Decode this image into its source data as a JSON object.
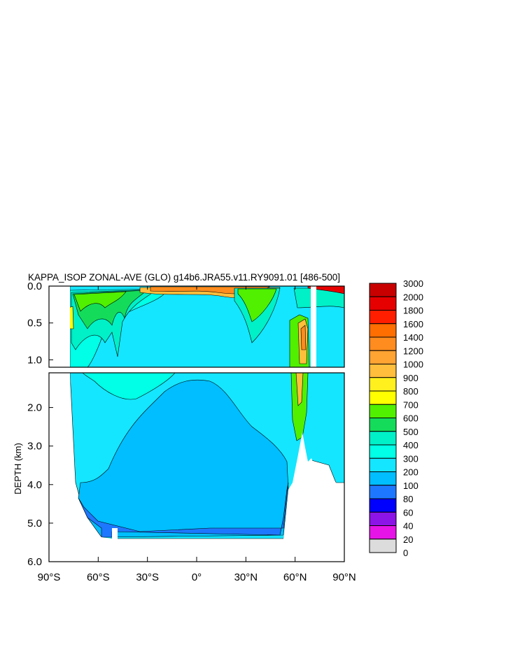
{
  "chart_data": {
    "type": "heatmap",
    "title": "KAPPA_ISOP ZONAL-AVE (GLO) g14b6.JRA55.v11.RY9091.01 [486-500]",
    "ylabel": "DEPTH (km)",
    "xlabel": "",
    "x_ticks": [
      {
        "value": -90,
        "label": "90°S"
      },
      {
        "value": -60,
        "label": "60°S"
      },
      {
        "value": -30,
        "label": "30°S"
      },
      {
        "value": 0,
        "label": "0°"
      },
      {
        "value": 30,
        "label": "30°N"
      },
      {
        "value": 60,
        "label": "60°N"
      },
      {
        "value": 90,
        "label": "90°N"
      }
    ],
    "xlim": [
      -90,
      90
    ],
    "upper_panel": {
      "ylim": [
        0.0,
        1.1
      ],
      "y_ticks": [
        {
          "value": 0.0,
          "label": "0.0"
        },
        {
          "value": 0.5,
          "label": "0.5"
        },
        {
          "value": 1.0,
          "label": "1.0"
        }
      ]
    },
    "lower_panel": {
      "ylim": [
        1.1,
        6.0
      ],
      "y_ticks": [
        {
          "value": 2.0,
          "label": "2.0"
        },
        {
          "value": 3.0,
          "label": "3.0"
        },
        {
          "value": 4.0,
          "label": "4.0"
        },
        {
          "value": 5.0,
          "label": "5.0"
        },
        {
          "value": 6.0,
          "label": "6.0"
        }
      ]
    },
    "colorbar": {
      "levels": [
        "3000",
        "2000",
        "1800",
        "1600",
        "1400",
        "1200",
        "1000",
        "900",
        "800",
        "700",
        "600",
        "500",
        "400",
        "300",
        "200",
        "100",
        "80",
        "60",
        "40",
        "20",
        "0"
      ],
      "colors": [
        "#c80000",
        "#e60000",
        "#ff1e00",
        "#ff6e00",
        "#ff8c1e",
        "#ffa332",
        "#ffbe3c",
        "#fff01e",
        "#ffff00",
        "#50f000",
        "#14dc5a",
        "#00f0c8",
        "#00ffe6",
        "#14e6ff",
        "#00beff",
        "#1e78ff",
        "#0000ff",
        "#8c14e6",
        "#e614e6",
        "#dcdcdc",
        "#787878"
      ]
    },
    "regions": {
      "upper": [
        {
          "band": "300",
          "x": [
            -76,
            90
          ],
          "depth": [
            0.0,
            1.1
          ]
        },
        {
          "band": "500",
          "x": [
            -70,
            -25
          ],
          "depth": [
            0.05,
            0.95
          ]
        },
        {
          "band": "600",
          "x": [
            -68,
            -40
          ],
          "depth": [
            0.05,
            0.75
          ]
        },
        {
          "band": "800",
          "x": [
            -62,
            -48
          ],
          "depth": [
            0.05,
            0.35
          ]
        },
        {
          "band": "1200",
          "x": [
            -35,
            45
          ],
          "depth": [
            0.0,
            0.12
          ]
        },
        {
          "band": "600",
          "x": [
            25,
            55
          ],
          "depth": [
            0.05,
            0.4
          ]
        },
        {
          "band": "700",
          "x": [
            57,
            68
          ],
          "depth": [
            0.4,
            1.1
          ]
        },
        {
          "band": "1000",
          "x": [
            60,
            67
          ],
          "depth": [
            0.45,
            1.0
          ]
        },
        {
          "band": "500",
          "x": [
            62,
            90
          ],
          "depth": [
            0.0,
            0.25
          ]
        }
      ],
      "lower": [
        {
          "band": "200",
          "x": [
            -76,
            52
          ],
          "depth": [
            3.5,
            5.4
          ]
        },
        {
          "band": "200",
          "x": [
            -50,
            45
          ],
          "depth": [
            1.8,
            3.5
          ]
        },
        {
          "band": "100",
          "x": [
            -60,
            52
          ],
          "depth": [
            5.1,
            5.4
          ]
        },
        {
          "band": "300",
          "x": [
            -76,
            90
          ],
          "depth": [
            1.1,
            1.8
          ]
        },
        {
          "band": "700",
          "x": [
            59,
            66
          ],
          "depth": [
            1.1,
            2.3
          ]
        }
      ]
    }
  }
}
